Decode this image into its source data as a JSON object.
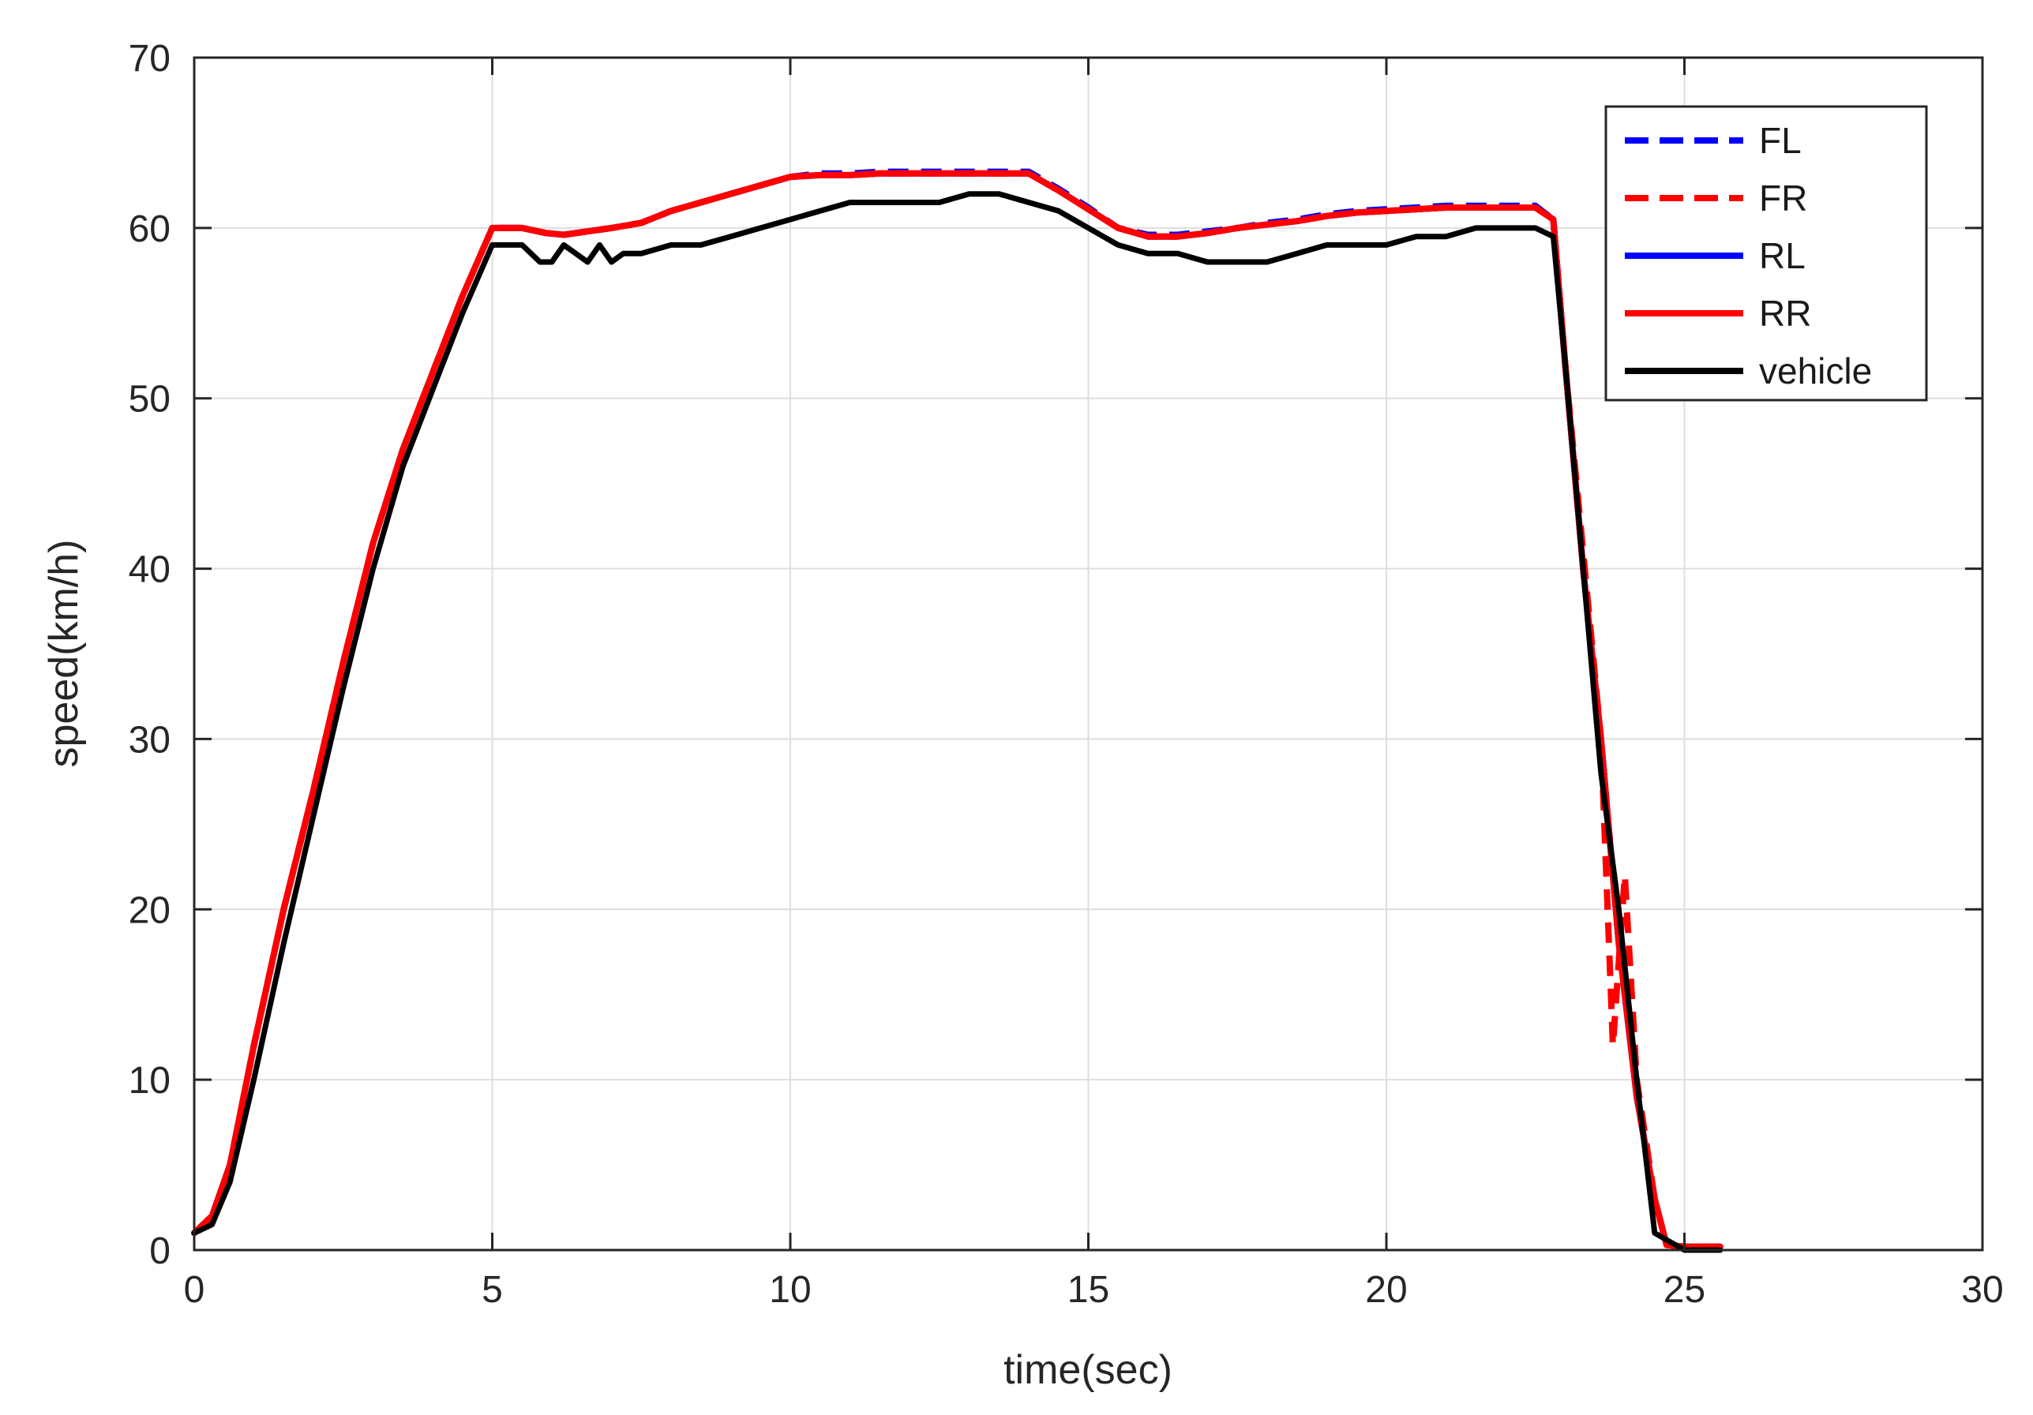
{
  "chart_data": {
    "type": "line",
    "title": "",
    "xlabel": "time(sec)",
    "ylabel": "speed(km/h)",
    "xlim": [
      0,
      30
    ],
    "ylim": [
      0,
      70
    ],
    "xticks": [
      0,
      5,
      10,
      15,
      20,
      25,
      30
    ],
    "yticks": [
      0,
      10,
      20,
      30,
      40,
      50,
      60,
      70
    ],
    "grid": true,
    "legend_position": "top-right",
    "series": [
      {
        "name": "FL",
        "color": "#0000ff",
        "style": "dashed",
        "x": [
          0,
          0.3,
          0.6,
          1,
          1.5,
          2,
          2.5,
          3,
          3.5,
          4,
          4.5,
          5,
          5.5,
          5.9,
          6.2,
          6.6,
          7,
          7.5,
          8,
          8.5,
          9,
          9.5,
          10,
          10.5,
          11,
          11.5,
          12,
          12.5,
          13,
          13.5,
          14,
          14.5,
          15,
          15.5,
          16,
          16.5,
          17,
          17.5,
          18,
          18.5,
          19,
          19.5,
          20,
          20.5,
          21,
          21.5,
          22,
          22.5,
          22.8,
          23.0,
          23.3,
          23.6,
          23.9,
          24.2,
          24.5,
          24.7,
          25,
          25.3,
          25.6
        ],
        "y": [
          1,
          2,
          5,
          12,
          20,
          27,
          34.5,
          41.5,
          47,
          51.5,
          56,
          60,
          60,
          59.7,
          59.6,
          59.8,
          60,
          60.3,
          61,
          61.5,
          62,
          62.5,
          63,
          63.2,
          63.2,
          63.3,
          63.3,
          63.3,
          63.3,
          63.3,
          63.3,
          62.3,
          61.2,
          60,
          59.6,
          59.6,
          59.8,
          60,
          60.3,
          60.5,
          60.8,
          61,
          61.1,
          61.2,
          61.3,
          61.3,
          61.3,
          61.3,
          60.5,
          52,
          40,
          30,
          18,
          9,
          3,
          0.3,
          0.2,
          0.2,
          0.2
        ]
      },
      {
        "name": "FR",
        "color": "#ff0000",
        "style": "dashed",
        "x": [
          0,
          0.3,
          0.6,
          1,
          1.5,
          2,
          2.5,
          3,
          3.5,
          4,
          4.5,
          5,
          5.5,
          5.9,
          6.2,
          6.6,
          7,
          7.5,
          8,
          8.5,
          9,
          9.5,
          10,
          10.5,
          11,
          11.5,
          12,
          12.5,
          13,
          13.5,
          14,
          14.5,
          15,
          15.5,
          16,
          16.5,
          17,
          17.5,
          18,
          18.5,
          19,
          19.5,
          20,
          20.5,
          21,
          21.5,
          22,
          22.5,
          22.8,
          23.0,
          23.3,
          23.6,
          23.8,
          24.0,
          24.2,
          24.5,
          24.7,
          25,
          25.3,
          25.6
        ],
        "y": [
          1,
          2,
          5,
          12,
          20,
          27,
          34.5,
          41.5,
          47,
          51.5,
          56,
          60,
          60,
          59.7,
          59.6,
          59.8,
          60,
          60.3,
          61,
          61.5,
          62,
          62.5,
          63,
          63.1,
          63.1,
          63.2,
          63.2,
          63.2,
          63.2,
          63.2,
          63.2,
          62.2,
          61.1,
          60,
          59.5,
          59.5,
          59.7,
          60,
          60.2,
          60.4,
          60.7,
          60.9,
          61,
          61.1,
          61.2,
          61.2,
          61.2,
          61.2,
          60.5,
          52,
          41,
          30,
          12,
          22,
          10,
          3,
          0.3,
          0.2,
          0.2,
          0.2
        ]
      },
      {
        "name": "RL",
        "color": "#0000ff",
        "style": "solid",
        "x": [
          0,
          0.3,
          0.6,
          1,
          1.5,
          2,
          2.5,
          3,
          3.5,
          4,
          4.5,
          5,
          5.5,
          5.9,
          6.2,
          6.6,
          7,
          7.5,
          8,
          8.5,
          9,
          9.5,
          10,
          10.5,
          11,
          11.5,
          12,
          12.5,
          13,
          13.5,
          14,
          14.5,
          15,
          15.5,
          16,
          16.5,
          17,
          17.5,
          18,
          18.5,
          19,
          19.5,
          20,
          20.5,
          21,
          21.5,
          22,
          22.5,
          22.8,
          23.0,
          23.3,
          23.6,
          23.9,
          24.2,
          24.5,
          24.7,
          25,
          25.3,
          25.6
        ],
        "y": [
          1,
          2,
          5,
          12,
          20,
          27,
          34.5,
          41.5,
          47,
          51.5,
          56,
          60,
          60,
          59.7,
          59.6,
          59.8,
          60,
          60.3,
          61,
          61.5,
          62,
          62.5,
          63,
          63.1,
          63.1,
          63.2,
          63.2,
          63.2,
          63.2,
          63.2,
          63.2,
          62.2,
          61.1,
          60,
          59.5,
          59.5,
          59.7,
          60,
          60.2,
          60.4,
          60.7,
          60.9,
          61,
          61.1,
          61.2,
          61.2,
          61.2,
          61.2,
          60.5,
          52,
          40,
          30,
          18,
          9,
          3,
          0.3,
          0.2,
          0.2,
          0.2
        ]
      },
      {
        "name": "RR",
        "color": "#ff0000",
        "style": "solid",
        "x": [
          0,
          0.3,
          0.6,
          1,
          1.5,
          2,
          2.5,
          3,
          3.5,
          4,
          4.5,
          5,
          5.5,
          5.9,
          6.2,
          6.6,
          7,
          7.5,
          8,
          8.5,
          9,
          9.5,
          10,
          10.5,
          11,
          11.5,
          12,
          12.5,
          13,
          13.5,
          14,
          14.5,
          15,
          15.5,
          16,
          16.5,
          17,
          17.5,
          18,
          18.5,
          19,
          19.5,
          20,
          20.5,
          21,
          21.5,
          22,
          22.5,
          22.8,
          23.0,
          23.3,
          23.6,
          23.9,
          24.2,
          24.5,
          24.7,
          25,
          25.3,
          25.6
        ],
        "y": [
          1,
          2,
          5,
          12,
          20,
          27,
          34.5,
          41.5,
          47,
          51.5,
          56,
          60,
          60,
          59.7,
          59.6,
          59.8,
          60,
          60.3,
          61,
          61.5,
          62,
          62.5,
          63,
          63.1,
          63.1,
          63.2,
          63.2,
          63.2,
          63.2,
          63.2,
          63.2,
          62.2,
          61.1,
          60,
          59.5,
          59.5,
          59.7,
          60,
          60.2,
          60.4,
          60.7,
          60.9,
          61,
          61.1,
          61.2,
          61.2,
          61.2,
          61.2,
          60.5,
          52,
          40,
          30,
          18,
          9,
          3,
          0.3,
          0.2,
          0.2,
          0.2
        ]
      },
      {
        "name": "vehicle",
        "color": "#000000",
        "style": "solid",
        "x": [
          0,
          0.3,
          0.6,
          1,
          1.5,
          2,
          2.5,
          3,
          3.5,
          4,
          4.5,
          5,
          5.5,
          5.8,
          6.0,
          6.2,
          6.4,
          6.6,
          6.8,
          7.0,
          7.2,
          7.5,
          8.0,
          8.5,
          9.0,
          9.5,
          10.0,
          10.5,
          11.0,
          11.5,
          12.0,
          12.5,
          13.0,
          13.5,
          14.0,
          14.5,
          15.0,
          15.5,
          16.0,
          16.5,
          17.0,
          17.5,
          18.0,
          18.5,
          19.0,
          19.5,
          20.0,
          20.5,
          21.0,
          21.5,
          22.0,
          22.5,
          22.8,
          23.0,
          23.3,
          23.6,
          23.9,
          24.2,
          24.5,
          25.0,
          25.3,
          25.6
        ],
        "y": [
          1,
          1.5,
          4,
          10,
          18,
          25.5,
          33,
          40,
          46,
          50.5,
          55,
          59,
          59,
          58,
          58,
          59,
          58.5,
          58,
          59,
          58,
          58.5,
          58.5,
          59,
          59,
          59.5,
          60,
          60.5,
          61,
          61.5,
          61.5,
          61.5,
          61.5,
          62,
          62,
          61.5,
          61,
          60,
          59,
          58.5,
          58.5,
          58,
          58,
          58,
          58.5,
          59,
          59,
          59,
          59.5,
          59.5,
          60,
          60,
          60,
          59.5,
          52,
          40,
          28,
          20,
          10,
          1,
          0,
          0,
          0
        ]
      }
    ]
  }
}
